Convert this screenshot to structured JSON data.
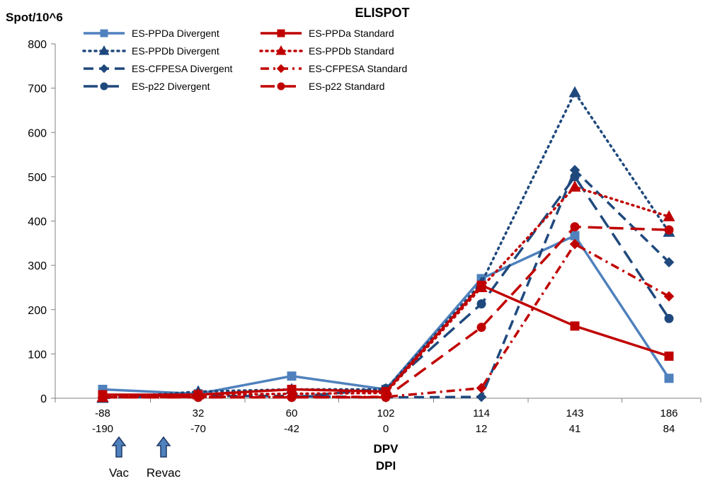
{
  "chart_data": {
    "type": "line",
    "title": "ELISPOT",
    "ylabel": "Spot/10^6",
    "xlabel_primary": "DPV",
    "xlabel_secondary": "DPI",
    "ylim": [
      0,
      800
    ],
    "yticks": [
      0,
      100,
      200,
      300,
      400,
      500,
      600,
      700,
      800
    ],
    "categories": [
      "-88",
      "32",
      "60",
      "102",
      "114",
      "143",
      "186"
    ],
    "categories_secondary": [
      "-190",
      "-70",
      "-42",
      "0",
      "12",
      "41",
      "84"
    ],
    "grid": false,
    "legend_position": "top",
    "annotations": [
      {
        "label": "Vac",
        "icon": "up-arrow-icon",
        "at_category": "-88"
      },
      {
        "label": "Revac",
        "icon": "up-arrow-icon",
        "at_category": "-88/32 midpoint"
      }
    ],
    "series": [
      {
        "name": "ES-PPDa Divergent",
        "color": "#4f81bd",
        "dash": "solid",
        "marker": "square",
        "values": [
          20,
          10,
          50,
          20,
          270,
          367,
          45
        ]
      },
      {
        "name": "ES-PPDb Divergent",
        "color": "#1f497d",
        "dash": "dot",
        "marker": "triangle",
        "values": [
          0,
          15,
          20,
          20,
          260,
          690,
          375
        ]
      },
      {
        "name": "ES-CFPESA Divergent",
        "color": "#1f497d",
        "dash": "dash",
        "marker": "diamond",
        "values": [
          2,
          5,
          5,
          2,
          3,
          515,
          307
        ]
      },
      {
        "name": "ES-p22 Divergent",
        "color": "#1f497d",
        "dash": "longdash",
        "marker": "circle",
        "values": [
          2,
          2,
          2,
          22,
          213,
          500,
          180
        ]
      },
      {
        "name": "ES-PPDa Standard",
        "color": "#c00000",
        "dash": "solid",
        "marker": "square",
        "values": [
          8,
          8,
          20,
          15,
          255,
          163,
          95
        ]
      },
      {
        "name": "ES-PPDb Standard",
        "color": "#c00000",
        "dash": "dot",
        "marker": "triangle",
        "values": [
          2,
          8,
          10,
          12,
          250,
          477,
          410
        ]
      },
      {
        "name": "ES-CFPESA Standard",
        "color": "#c00000",
        "dash": "dashdot",
        "marker": "diamond",
        "values": [
          2,
          3,
          3,
          3,
          23,
          348,
          230
        ]
      },
      {
        "name": "ES-p22 Standard",
        "color": "#c00000",
        "dash": "longdash",
        "marker": "circle",
        "values": [
          2,
          2,
          2,
          2,
          160,
          387,
          380
        ]
      }
    ]
  }
}
